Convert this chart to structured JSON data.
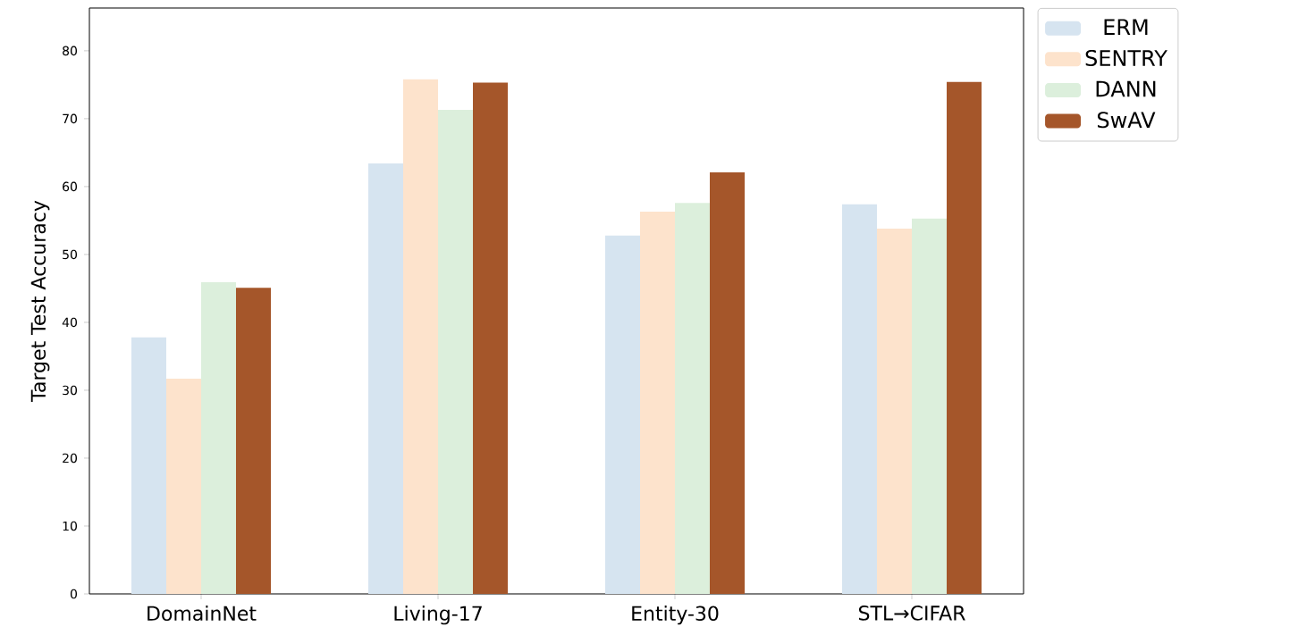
{
  "chart_data": {
    "type": "bar",
    "ylabel": "Target Test Accuracy",
    "categories": [
      "DomainNet",
      "Living-17",
      "Entity-30",
      "STL→CIFAR"
    ],
    "series": [
      {
        "name": "ERM",
        "color": "#d6e4f0",
        "values": [
          37.8,
          63.4,
          52.8,
          57.4
        ]
      },
      {
        "name": "SENTRY",
        "color": "#fde3cc",
        "values": [
          31.7,
          75.8,
          56.3,
          53.8
        ]
      },
      {
        "name": "DANN",
        "color": "#dcefdc",
        "values": [
          45.9,
          71.3,
          57.6,
          55.3
        ]
      },
      {
        "name": "SwAV",
        "color": "#a5562a",
        "values": [
          45.1,
          75.3,
          62.1,
          75.4
        ]
      }
    ],
    "ylim": [
      0,
      86.3
    ],
    "yticks": [
      0,
      10,
      20,
      30,
      40,
      50,
      60,
      70,
      80
    ],
    "grid": false,
    "legend": "right"
  }
}
